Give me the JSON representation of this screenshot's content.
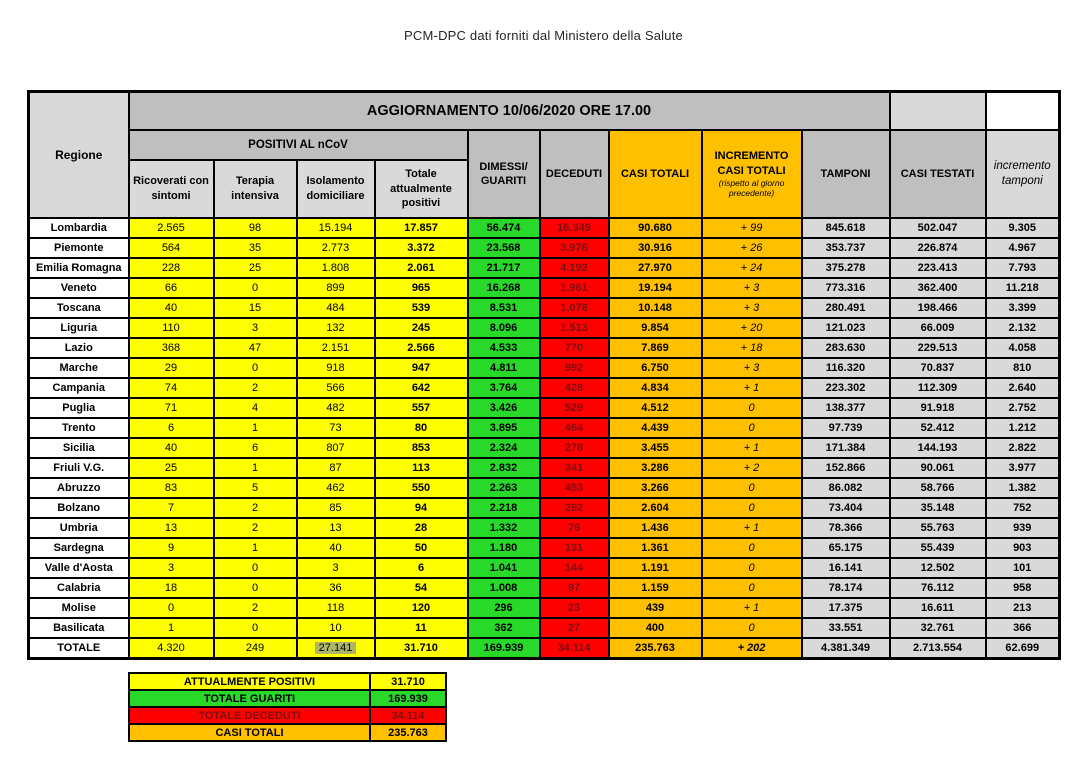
{
  "page_title": "PCM-DPC dati forniti dal Ministero della Salute",
  "colors": {
    "yellow": "#FFFF00",
    "green": "#29D929",
    "red": "#FF0000",
    "red_text": "#7E0F10",
    "orange": "#FFC000",
    "header_grey": "#BFBFBF",
    "light_grey": "#D9D9D9",
    "highlight": "#ADB56B"
  },
  "table": {
    "update_banner": "AGGIORNAMENTO 10/06/2020 ORE 17.00",
    "headers": {
      "region": "Regione",
      "positivi_group": "POSITIVI AL nCoV",
      "sub": [
        "Ricoverati con sintomi",
        "Terapia intensiva",
        "Isolamento domiciliare",
        "Totale attualmente positivi"
      ],
      "dimessi": "DIMESSI/ GUARITI",
      "deceduti": "DECEDUTI",
      "casi_totali": "CASI TOTALI",
      "incremento": "INCREMENTO CASI  TOTALI",
      "incremento_note": "(rispetto al giorno precedente)",
      "tamponi": "TAMPONI",
      "casi_testati": "CASI TESTATI",
      "incremento_tamponi": "incremento tamponi"
    },
    "regions": [
      {
        "name": "Lombardia",
        "values": [
          "2.565",
          "98",
          "15.194",
          "17.857",
          "56.474",
          "16.349",
          "90.680",
          "+ 99",
          "845.618",
          "502.047",
          "9.305"
        ]
      },
      {
        "name": "Piemonte",
        "values": [
          "564",
          "35",
          "2.773",
          "3.372",
          "23.568",
          "3.976",
          "30.916",
          "+ 26",
          "353.737",
          "226.874",
          "4.967"
        ]
      },
      {
        "name": "Emilia Romagna",
        "values": [
          "228",
          "25",
          "1.808",
          "2.061",
          "21.717",
          "4.192",
          "27.970",
          "+ 24",
          "375.278",
          "223.413",
          "7.793"
        ]
      },
      {
        "name": "Veneto",
        "values": [
          "66",
          "0",
          "899",
          "965",
          "16.268",
          "1.961",
          "19.194",
          "+ 3",
          "773.316",
          "362.400",
          "11.218"
        ]
      },
      {
        "name": "Toscana",
        "values": [
          "40",
          "15",
          "484",
          "539",
          "8.531",
          "1.078",
          "10.148",
          "+ 3",
          "280.491",
          "198.466",
          "3.399"
        ]
      },
      {
        "name": "Liguria",
        "values": [
          "110",
          "3",
          "132",
          "245",
          "8.096",
          "1.513",
          "9.854",
          "+ 20",
          "121.023",
          "66.009",
          "2.132"
        ]
      },
      {
        "name": "Lazio",
        "values": [
          "368",
          "47",
          "2.151",
          "2.566",
          "4.533",
          "770",
          "7.869",
          "+ 18",
          "283.630",
          "229.513",
          "4.058"
        ]
      },
      {
        "name": "Marche",
        "values": [
          "29",
          "0",
          "918",
          "947",
          "4.811",
          "992",
          "6.750",
          "+ 3",
          "116.320",
          "70.837",
          "810"
        ]
      },
      {
        "name": "Campania",
        "values": [
          "74",
          "2",
          "566",
          "642",
          "3.764",
          "428",
          "4.834",
          "+ 1",
          "223.302",
          "112.309",
          "2.640"
        ]
      },
      {
        "name": "Puglia",
        "values": [
          "71",
          "4",
          "482",
          "557",
          "3.426",
          "529",
          "4.512",
          "0",
          "138.377",
          "91.918",
          "2.752"
        ]
      },
      {
        "name": "Trento",
        "values": [
          "6",
          "1",
          "73",
          "80",
          "3.895",
          "464",
          "4.439",
          "0",
          "97.739",
          "52.412",
          "1.212"
        ]
      },
      {
        "name": "Sicilia",
        "values": [
          "40",
          "6",
          "807",
          "853",
          "2.324",
          "278",
          "3.455",
          "+ 1",
          "171.384",
          "144.193",
          "2.822"
        ]
      },
      {
        "name": "Friuli V.G.",
        "values": [
          "25",
          "1",
          "87",
          "113",
          "2.832",
          "341",
          "3.286",
          "+ 2",
          "152.866",
          "90.061",
          "3.977"
        ]
      },
      {
        "name": "Abruzzo",
        "values": [
          "83",
          "5",
          "462",
          "550",
          "2.263",
          "453",
          "3.266",
          "0",
          "86.082",
          "58.766",
          "1.382"
        ]
      },
      {
        "name": "Bolzano",
        "values": [
          "7",
          "2",
          "85",
          "94",
          "2.218",
          "292",
          "2.604",
          "0",
          "73.404",
          "35.148",
          "752"
        ]
      },
      {
        "name": "Umbria",
        "values": [
          "13",
          "2",
          "13",
          "28",
          "1.332",
          "76",
          "1.436",
          "+ 1",
          "78.366",
          "55.763",
          "939"
        ]
      },
      {
        "name": "Sardegna",
        "values": [
          "9",
          "1",
          "40",
          "50",
          "1.180",
          "131",
          "1.361",
          "0",
          "65.175",
          "55.439",
          "903"
        ]
      },
      {
        "name": "Valle d'Aosta",
        "values": [
          "3",
          "0",
          "3",
          "6",
          "1.041",
          "144",
          "1.191",
          "0",
          "16.141",
          "12.502",
          "101"
        ]
      },
      {
        "name": "Calabria",
        "values": [
          "18",
          "0",
          "36",
          "54",
          "1.008",
          "97",
          "1.159",
          "0",
          "78.174",
          "76.112",
          "958"
        ]
      },
      {
        "name": "Molise",
        "values": [
          "0",
          "2",
          "118",
          "120",
          "296",
          "23",
          "439",
          "+ 1",
          "17.375",
          "16.611",
          "213"
        ]
      },
      {
        "name": "Basilicata",
        "values": [
          "1",
          "0",
          "10",
          "11",
          "362",
          "27",
          "400",
          "0",
          "33.551",
          "32.761",
          "366"
        ]
      }
    ],
    "totale": {
      "name": "TOTALE",
      "values": [
        "4.320",
        "249",
        "27.141",
        "31.710",
        "169.939",
        "34.114",
        "235.763",
        "+ 202",
        "4.381.349",
        "2.713.554",
        "62.699"
      ],
      "highlighted_column_index": 2,
      "highlighted_value": "27.141"
    }
  },
  "summary": {
    "rows": [
      {
        "label": "ATTUALMENTE POSITIVI",
        "value": "31.710",
        "color_key": "yellow"
      },
      {
        "label": "TOTALE GUARITI",
        "value": "169.939",
        "color_key": "green"
      },
      {
        "label": "TOTALE DECEDUTI",
        "value": "34.114",
        "color_key": "red"
      },
      {
        "label": "CASI TOTALI",
        "value": "235.763",
        "color_key": "orange"
      }
    ]
  }
}
